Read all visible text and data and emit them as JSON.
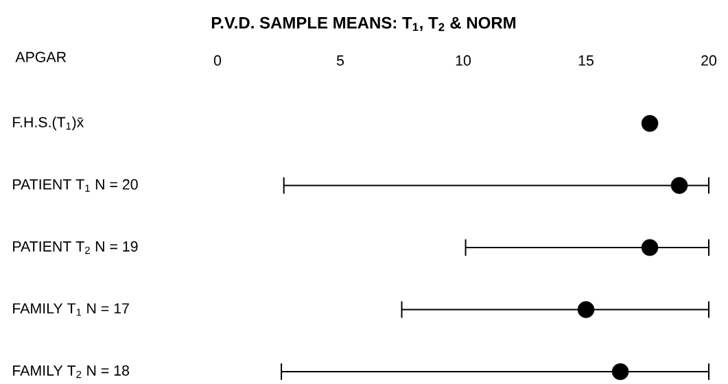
{
  "chart_data": {
    "type": "scatter",
    "orientation": "horizontal",
    "title": "P.V.D. SAMPLE MEANS: T$_{1}$, T$_{2}$ & NORM",
    "xlabel": "APGAR",
    "categories": [
      "F.H.S.(T$_{1}$)x̄",
      "PATIENT T$_{1}$ N = 20",
      "PATIENT T$_{2}$ N = 19",
      "FAMILY T$_{1}$ N = 17",
      "FAMILY T$_{2}$ N = 18"
    ],
    "values": [
      17.6,
      18.8,
      17.6,
      15.0,
      16.4
    ],
    "errors": [
      null,
      [
        2.7,
        20
      ],
      [
        10.1,
        20
      ],
      [
        7.5,
        20
      ],
      [
        2.6,
        20
      ]
    ],
    "color": "#000000",
    "marker": "circle",
    "xlim": [
      0,
      20
    ],
    "xticks": [
      0,
      5,
      10,
      15,
      20
    ]
  }
}
